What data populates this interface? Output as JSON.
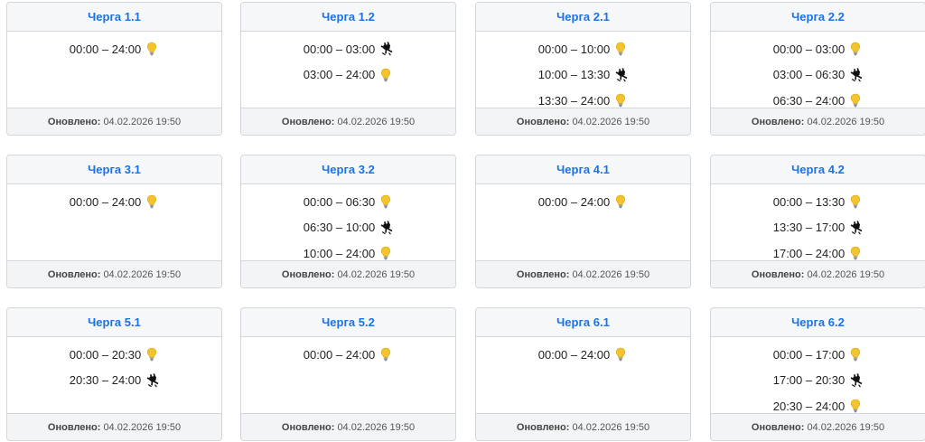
{
  "footer_label": "Оновлено:",
  "updated": "04.02.2026 19:50",
  "icons": {
    "on": "lightbulb-icon",
    "off": "power-off-icon"
  },
  "colors": {
    "title": "#1a73e8",
    "bulb": "#f4c430"
  },
  "queues": [
    {
      "title": "Черга 1.1",
      "slots": [
        {
          "time": "00:00 – 24:00",
          "state": "on"
        }
      ]
    },
    {
      "title": "Черга 1.2",
      "slots": [
        {
          "time": "00:00 – 03:00",
          "state": "off"
        },
        {
          "time": "03:00 – 24:00",
          "state": "on"
        }
      ]
    },
    {
      "title": "Черга 2.1",
      "slots": [
        {
          "time": "00:00 – 10:00",
          "state": "on"
        },
        {
          "time": "10:00 – 13:30",
          "state": "off"
        },
        {
          "time": "13:30 – 24:00",
          "state": "on"
        }
      ]
    },
    {
      "title": "Черга 2.2",
      "slots": [
        {
          "time": "00:00 – 03:00",
          "state": "on"
        },
        {
          "time": "03:00 – 06:30",
          "state": "off"
        },
        {
          "time": "06:30 – 24:00",
          "state": "on"
        }
      ]
    },
    {
      "title": "Черга 3.1",
      "slots": [
        {
          "time": "00:00 – 24:00",
          "state": "on"
        }
      ]
    },
    {
      "title": "Черга 3.2",
      "slots": [
        {
          "time": "00:00 – 06:30",
          "state": "on"
        },
        {
          "time": "06:30 – 10:00",
          "state": "off"
        },
        {
          "time": "10:00 – 24:00",
          "state": "on"
        }
      ]
    },
    {
      "title": "Черга 4.1",
      "slots": [
        {
          "time": "00:00 – 24:00",
          "state": "on"
        }
      ]
    },
    {
      "title": "Черга 4.2",
      "slots": [
        {
          "time": "00:00 – 13:30",
          "state": "on"
        },
        {
          "time": "13:30 – 17:00",
          "state": "off"
        },
        {
          "time": "17:00 – 24:00",
          "state": "on"
        }
      ]
    },
    {
      "title": "Черга 5.1",
      "slots": [
        {
          "time": "00:00 – 20:30",
          "state": "on"
        },
        {
          "time": "20:30 – 24:00",
          "state": "off"
        }
      ]
    },
    {
      "title": "Черга 5.2",
      "slots": [
        {
          "time": "00:00 – 24:00",
          "state": "on"
        }
      ]
    },
    {
      "title": "Черга 6.1",
      "slots": [
        {
          "time": "00:00 – 24:00",
          "state": "on"
        }
      ]
    },
    {
      "title": "Черга 6.2",
      "slots": [
        {
          "time": "00:00 – 17:00",
          "state": "on"
        },
        {
          "time": "17:00 – 20:30",
          "state": "off"
        },
        {
          "time": "20:30 – 24:00",
          "state": "on"
        }
      ]
    }
  ]
}
